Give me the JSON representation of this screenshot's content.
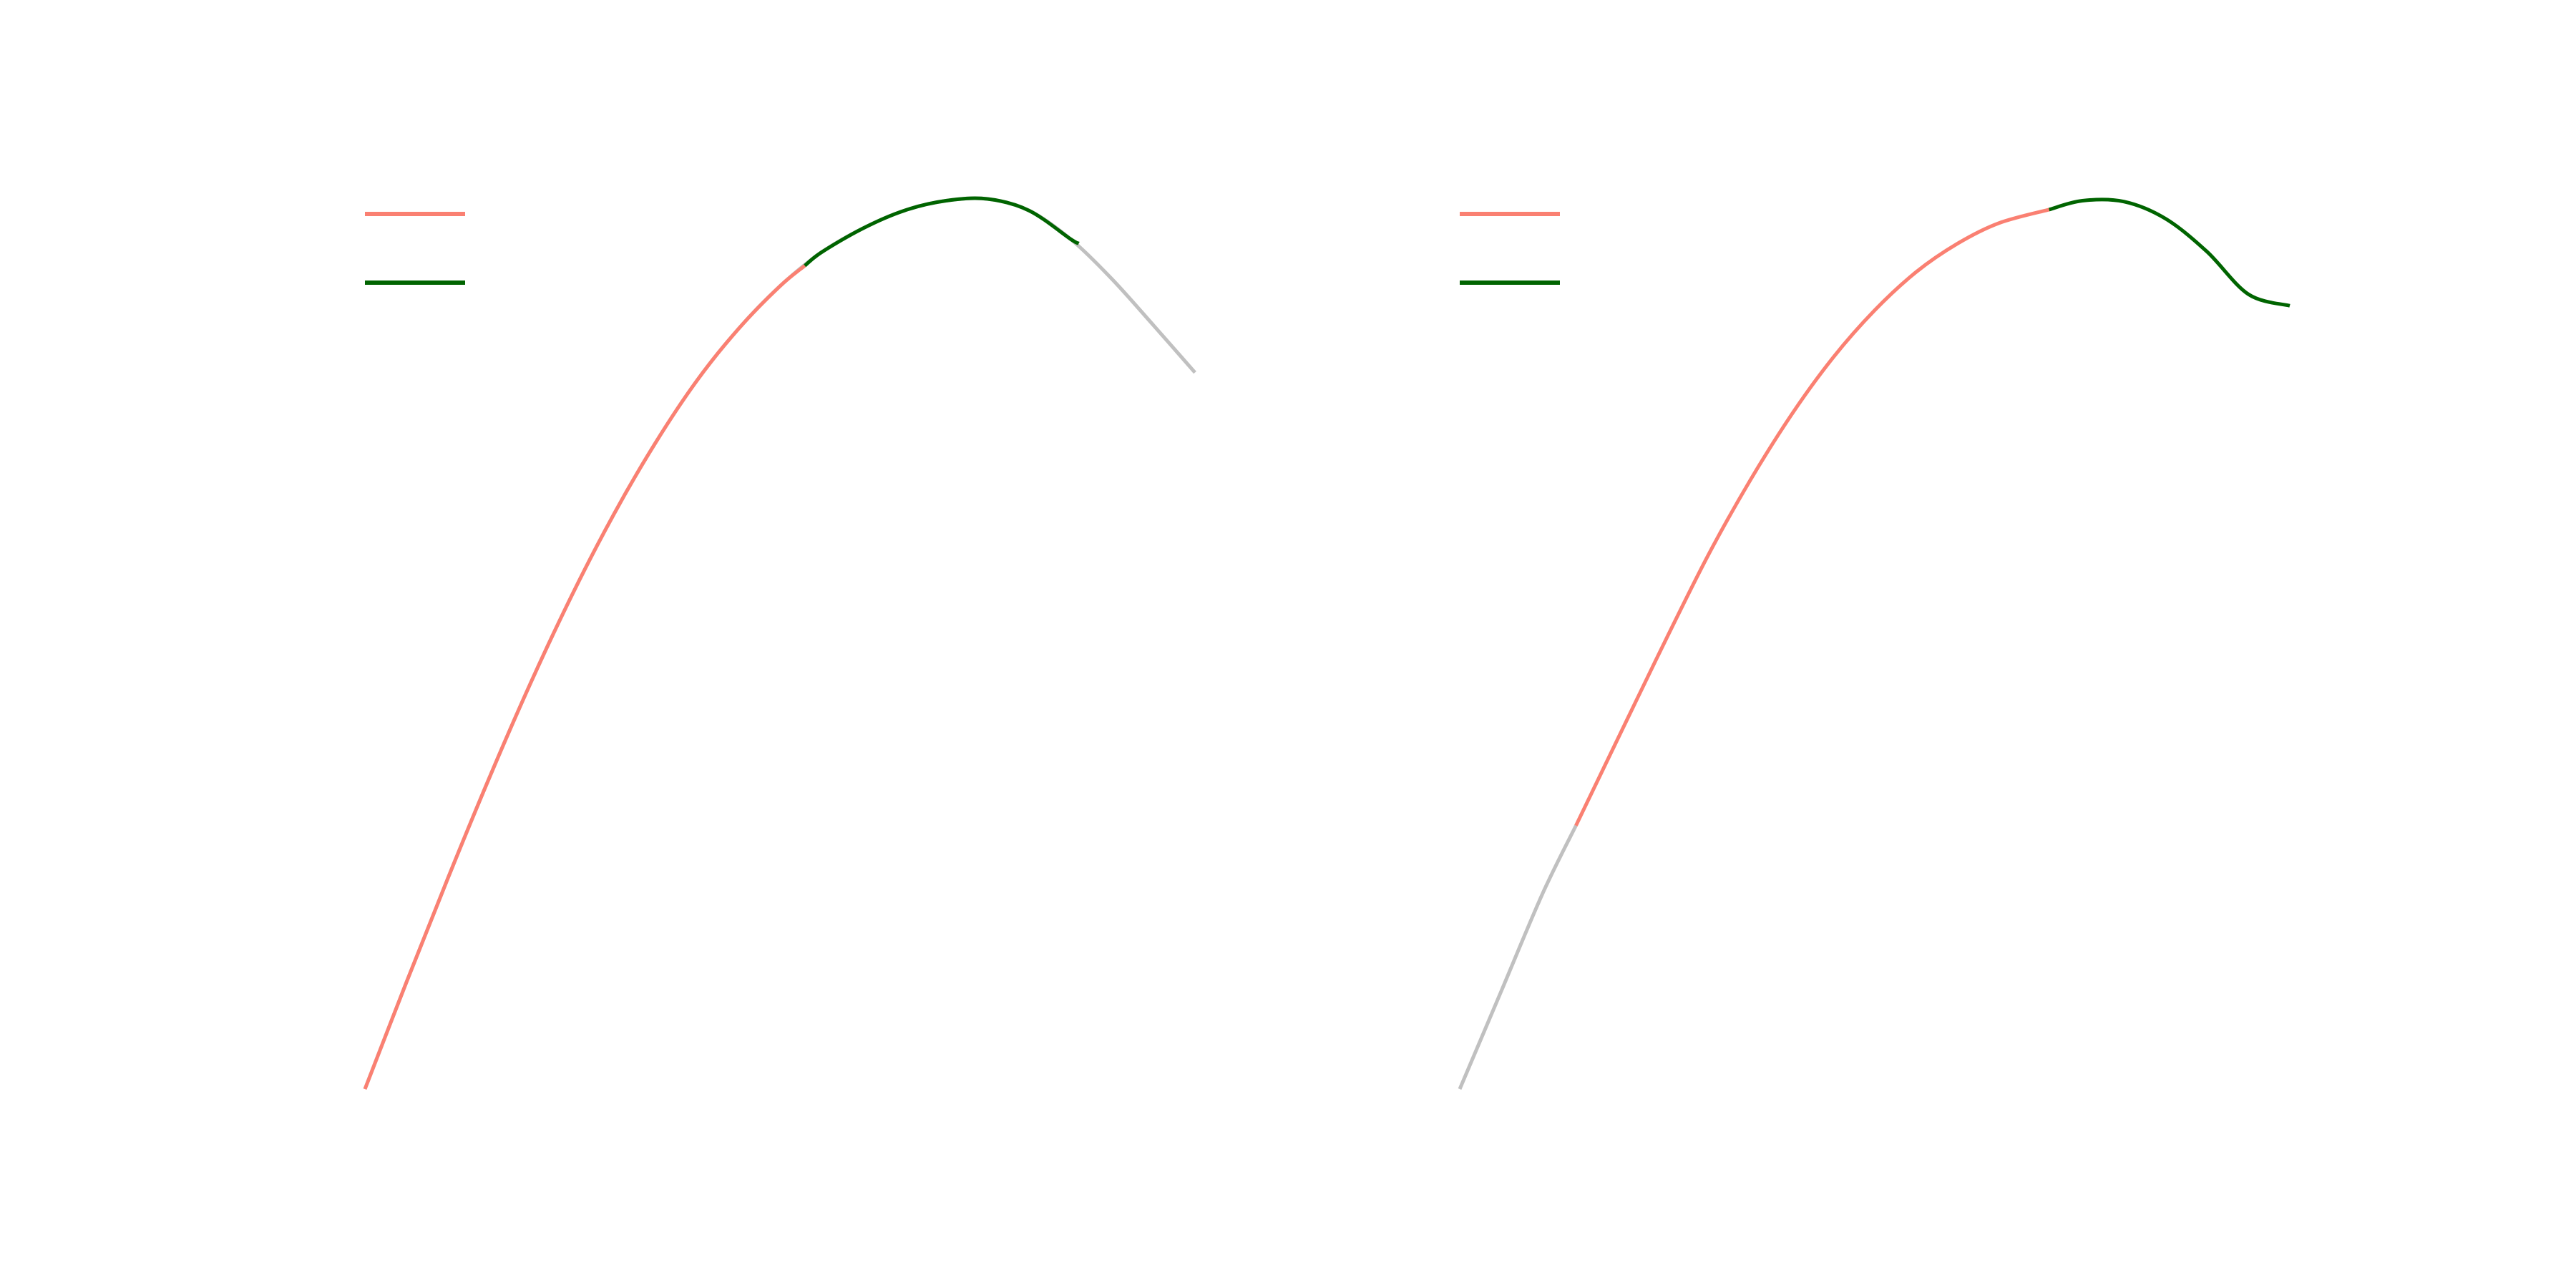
{
  "chart_data": [
    {
      "type": "line",
      "title": "",
      "xlabel": "",
      "ylabel": "",
      "xlim": [
        0,
        1
      ],
      "ylim": [
        0,
        1
      ],
      "grid": false,
      "axes_visible": false,
      "legend": {
        "placement": "upper-left",
        "entries": [
          {
            "label": "",
            "color": "#fa8072"
          },
          {
            "label": "",
            "color": "#006400"
          }
        ]
      },
      "series": [
        {
          "color": "#c0c0c0",
          "points": [
            [
              0.0,
              0.0
            ],
            [
              0.05,
              0.12
            ],
            [
              0.1,
              0.237
            ],
            [
              0.15,
              0.35
            ],
            [
              0.2,
              0.457
            ],
            [
              0.25,
              0.556
            ],
            [
              0.3,
              0.646
            ],
            [
              0.35,
              0.726
            ],
            [
              0.4,
              0.796
            ],
            [
              0.45,
              0.854
            ],
            [
              0.5,
              0.902
            ],
            [
              0.55,
              0.94
            ],
            [
              0.6,
              0.967
            ],
            [
              0.65,
              0.987
            ],
            [
              0.7,
              0.998
            ],
            [
              0.75,
              1.0
            ],
            [
              0.8,
              0.987
            ],
            [
              0.85,
              0.955
            ],
            [
              0.9,
              0.91
            ],
            [
              0.95,
              0.858
            ],
            [
              1.0,
              0.805
            ]
          ]
        },
        {
          "color": "#fa8072",
          "points": [
            [
              0.0,
              0.0
            ],
            [
              0.05,
              0.12
            ],
            [
              0.1,
              0.237
            ],
            [
              0.15,
              0.35
            ],
            [
              0.2,
              0.457
            ],
            [
              0.25,
              0.556
            ],
            [
              0.3,
              0.646
            ],
            [
              0.35,
              0.726
            ],
            [
              0.4,
              0.796
            ],
            [
              0.45,
              0.854
            ],
            [
              0.5,
              0.902
            ],
            [
              0.53,
              0.925
            ]
          ]
        },
        {
          "color": "#006400",
          "points": [
            [
              0.53,
              0.925
            ],
            [
              0.55,
              0.94
            ],
            [
              0.6,
              0.967
            ],
            [
              0.65,
              0.987
            ],
            [
              0.7,
              0.998
            ],
            [
              0.75,
              1.0
            ],
            [
              0.8,
              0.987
            ],
            [
              0.85,
              0.955
            ],
            [
              0.86,
              0.95
            ]
          ]
        }
      ]
    },
    {
      "type": "line",
      "title": "",
      "xlabel": "",
      "ylabel": "",
      "xlim": [
        0,
        1
      ],
      "ylim": [
        0,
        1
      ],
      "grid": false,
      "axes_visible": false,
      "legend": {
        "placement": "upper-left",
        "entries": [
          {
            "label": "",
            "color": "#fa8072"
          },
          {
            "label": "",
            "color": "#006400"
          }
        ]
      },
      "series": [
        {
          "color": "#c0c0c0",
          "points": [
            [
              0.0,
              0.0
            ],
            [
              0.05,
              0.11
            ],
            [
              0.1,
              0.22
            ],
            [
              0.14,
              0.296
            ]
          ]
        },
        {
          "color": "#fa8072",
          "points": [
            [
              0.14,
              0.296
            ],
            [
              0.2,
              0.412
            ],
            [
              0.25,
              0.508
            ],
            [
              0.3,
              0.601
            ],
            [
              0.35,
              0.684
            ],
            [
              0.4,
              0.758
            ],
            [
              0.45,
              0.822
            ],
            [
              0.5,
              0.875
            ],
            [
              0.55,
              0.918
            ],
            [
              0.6,
              0.95
            ],
            [
              0.65,
              0.973
            ],
            [
              0.71,
              0.988
            ]
          ]
        },
        {
          "color": "#006400",
          "points": [
            [
              0.71,
              0.988
            ],
            [
              0.75,
              0.998
            ],
            [
              0.8,
              0.997
            ],
            [
              0.85,
              0.978
            ],
            [
              0.9,
              0.941
            ],
            [
              0.95,
              0.893
            ],
            [
              1.0,
              0.88
            ]
          ]
        }
      ]
    }
  ]
}
